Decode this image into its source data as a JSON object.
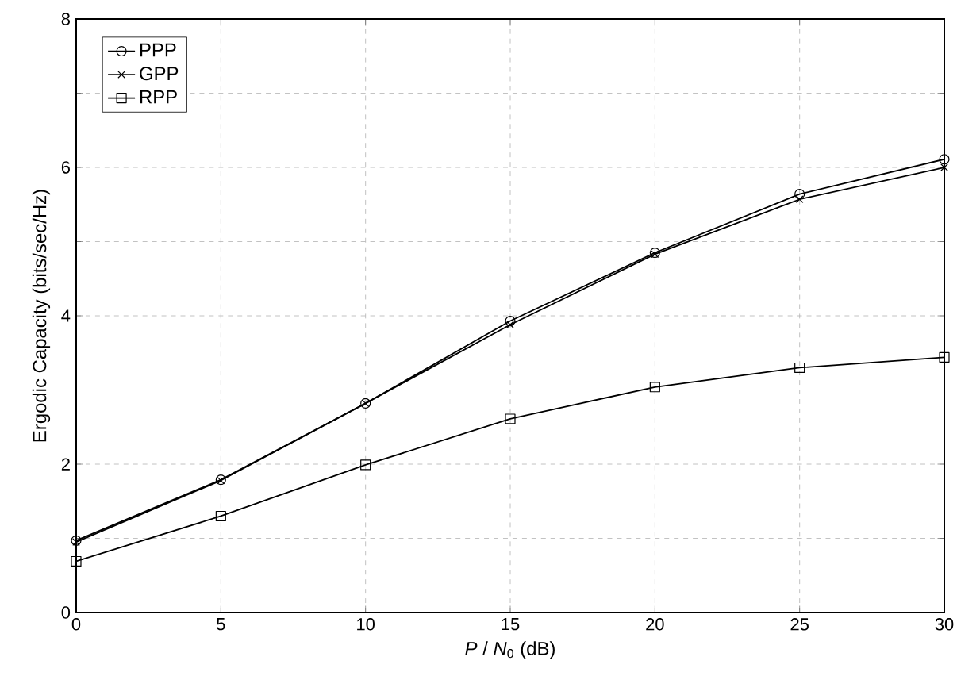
{
  "chart_data": {
    "type": "line",
    "xlabel": "*P* / *N*$_{0}$ (dB)",
    "ylabel": "Ergodic Capacity (bits/sec/Hz)",
    "x": [
      0,
      5,
      10,
      15,
      20,
      25,
      30
    ],
    "series": [
      {
        "name": "PPP",
        "color": "#000000",
        "marker": "circle",
        "values": [
          0.97,
          1.79,
          2.82,
          3.93,
          4.85,
          5.64,
          6.11
        ]
      },
      {
        "name": "GPP",
        "color": "#000000",
        "marker": "cross",
        "values": [
          0.95,
          1.78,
          2.82,
          3.88,
          4.83,
          5.57,
          6.0
        ]
      },
      {
        "name": "RPP",
        "color": "#000000",
        "marker": "square",
        "values": [
          0.69,
          1.3,
          1.99,
          2.61,
          3.04,
          3.3,
          3.44
        ]
      }
    ],
    "xlim": [
      0,
      30
    ],
    "ylim": [
      0,
      8
    ],
    "xticks": [
      0,
      5,
      10,
      15,
      20,
      25,
      30
    ],
    "yticks": [
      0,
      {
        "value": 1,
        "label": null
      },
      2,
      {
        "value": 3,
        "label": null
      },
      4,
      {
        "value": 5,
        "label": null
      },
      6,
      {
        "value": 7,
        "label": null
      },
      8
    ],
    "grid": true,
    "legend": "top left",
    "line_style": "solid"
  }
}
